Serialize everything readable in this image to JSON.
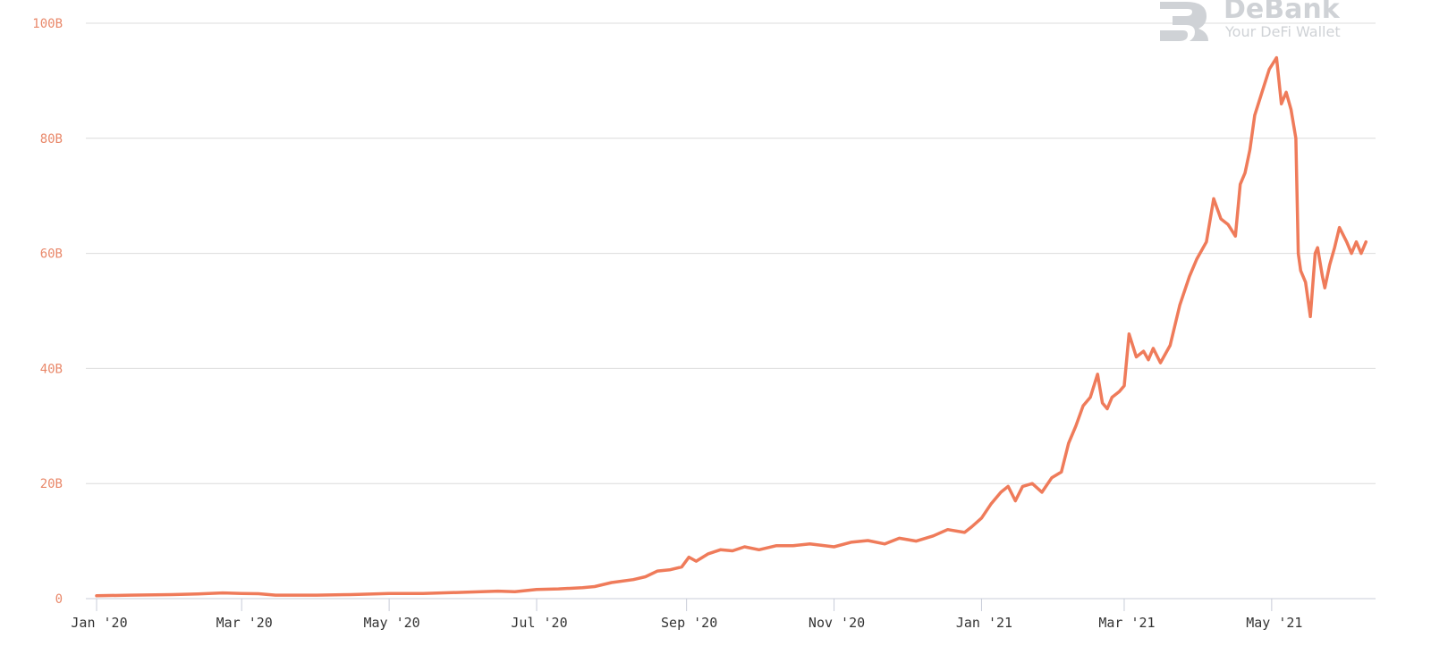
{
  "brand": {
    "name": "DeBank",
    "tagline": "Your DeFi Wallet"
  },
  "colors": {
    "line": "#ef7b5a",
    "ytick": "#e9886a",
    "grid": "#dcdcdc"
  },
  "chart_data": {
    "type": "line",
    "title": "",
    "xlabel": "",
    "ylabel": "",
    "grid": true,
    "legend": "none",
    "ylim": [
      0,
      100
    ],
    "yunit": "B",
    "yticks": [
      0,
      20,
      40,
      60,
      80,
      100
    ],
    "ytick_labels": [
      "0",
      "20B",
      "40B",
      "60B",
      "80B",
      "100B"
    ],
    "xticks": [
      "2020-01-01",
      "2020-03-01",
      "2020-05-01",
      "2020-07-01",
      "2020-09-01",
      "2020-11-01",
      "2021-01-01",
      "2021-03-01",
      "2021-05-01"
    ],
    "xtick_labels": [
      "Jan '20",
      "Mar '20",
      "May '20",
      "Jul '20",
      "Sep '20",
      "Nov '20",
      "Jan '21",
      "Mar '21",
      "May '21"
    ],
    "xlim": [
      "2020-01-01",
      "2021-06-10"
    ],
    "series": [
      {
        "x": [
          "2020-01-01",
          "2020-01-15",
          "2020-02-01",
          "2020-02-12",
          "2020-02-22",
          "2020-03-01",
          "2020-03-08",
          "2020-03-15",
          "2020-04-01",
          "2020-04-15",
          "2020-05-01",
          "2020-05-15",
          "2020-06-01",
          "2020-06-15",
          "2020-06-22",
          "2020-07-01",
          "2020-07-10",
          "2020-07-20",
          "2020-07-25",
          "2020-08-01",
          "2020-08-10",
          "2020-08-15",
          "2020-08-20",
          "2020-08-25",
          "2020-08-30",
          "2020-09-02",
          "2020-09-05",
          "2020-09-10",
          "2020-09-15",
          "2020-09-20",
          "2020-09-25",
          "2020-10-01",
          "2020-10-08",
          "2020-10-15",
          "2020-10-22",
          "2020-11-01",
          "2020-11-08",
          "2020-11-15",
          "2020-11-22",
          "2020-11-28",
          "2020-12-05",
          "2020-12-12",
          "2020-12-18",
          "2020-12-25",
          "2020-12-28",
          "2021-01-01",
          "2021-01-05",
          "2021-01-09",
          "2021-01-12",
          "2021-01-15",
          "2021-01-18",
          "2021-01-22",
          "2021-01-26",
          "2021-01-30",
          "2021-02-03",
          "2021-02-06",
          "2021-02-09",
          "2021-02-12",
          "2021-02-15",
          "2021-02-18",
          "2021-02-20",
          "2021-02-22",
          "2021-02-24",
          "2021-02-27",
          "2021-03-01",
          "2021-03-03",
          "2021-03-06",
          "2021-03-09",
          "2021-03-11",
          "2021-03-13",
          "2021-03-16",
          "2021-03-20",
          "2021-03-24",
          "2021-03-28",
          "2021-03-31",
          "2021-04-04",
          "2021-04-07",
          "2021-04-10",
          "2021-04-13",
          "2021-04-16",
          "2021-04-18",
          "2021-04-20",
          "2021-04-22",
          "2021-04-24",
          "2021-04-27",
          "2021-04-30",
          "2021-05-03",
          "2021-05-05",
          "2021-05-07",
          "2021-05-09",
          "2021-05-11",
          "2021-05-12",
          "2021-05-13",
          "2021-05-15",
          "2021-05-17",
          "2021-05-19",
          "2021-05-20",
          "2021-05-22",
          "2021-05-23",
          "2021-05-25",
          "2021-05-27",
          "2021-05-29",
          "2021-06-01",
          "2021-06-03",
          "2021-06-05",
          "2021-06-07",
          "2021-06-09"
        ],
        "values": [
          0.5,
          0.6,
          0.7,
          0.8,
          1.0,
          0.9,
          0.85,
          0.6,
          0.6,
          0.7,
          0.9,
          0.9,
          1.1,
          1.3,
          1.2,
          1.6,
          1.7,
          1.9,
          2.1,
          2.8,
          3.3,
          3.8,
          4.8,
          5.0,
          5.5,
          7.2,
          6.5,
          7.8,
          8.5,
          8.3,
          9.0,
          8.5,
          9.2,
          9.2,
          9.5,
          9.0,
          9.8,
          10.1,
          9.5,
          10.5,
          10.0,
          10.9,
          12.0,
          11.5,
          12.5,
          14.0,
          16.5,
          18.5,
          19.5,
          17.0,
          19.5,
          20.0,
          18.5,
          21.0,
          22.0,
          27.0,
          30.0,
          33.5,
          35.0,
          39.0,
          34.0,
          33.0,
          35.0,
          36.0,
          37.0,
          46.0,
          42.0,
          43.0,
          41.5,
          43.5,
          41.0,
          44.0,
          51.0,
          56.0,
          59.0,
          62.0,
          69.5,
          66.0,
          65.0,
          63.0,
          72.0,
          74.0,
          78.0,
          84.0,
          88.0,
          92.0,
          94.0,
          86.0,
          88.0,
          85.0,
          80.0,
          60.0,
          57.0,
          55.0,
          49.0,
          60.0,
          61.0,
          56.0,
          54.0,
          58.0,
          61.0,
          64.5,
          62.0,
          60.0,
          62.0,
          60.0,
          62.0
        ]
      }
    ]
  }
}
